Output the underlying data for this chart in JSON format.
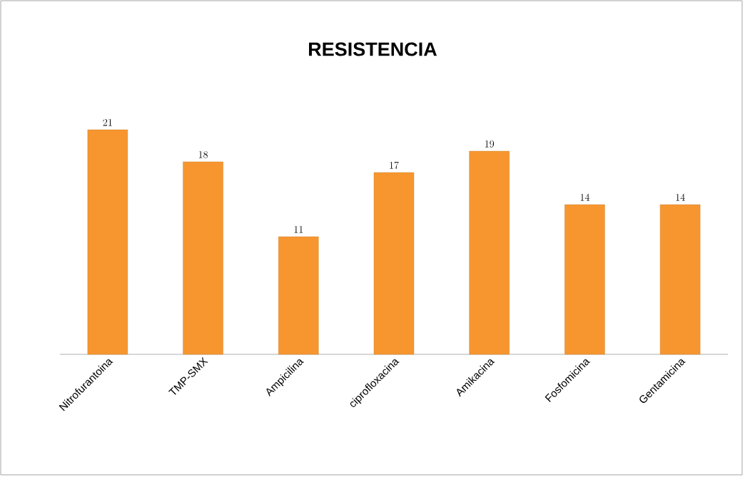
{
  "chart_data": {
    "type": "bar",
    "title": "RESISTENCIA",
    "categories": [
      "Nitrofurantoina",
      "TMP-SMX",
      "Ampicilina",
      "ciprofloxacina",
      "Amikacina",
      "Fosfomicina",
      "Gentamicina"
    ],
    "values": [
      21,
      18,
      11,
      17,
      19,
      14,
      14
    ],
    "color": "#f7962f",
    "data_labels": true
  }
}
